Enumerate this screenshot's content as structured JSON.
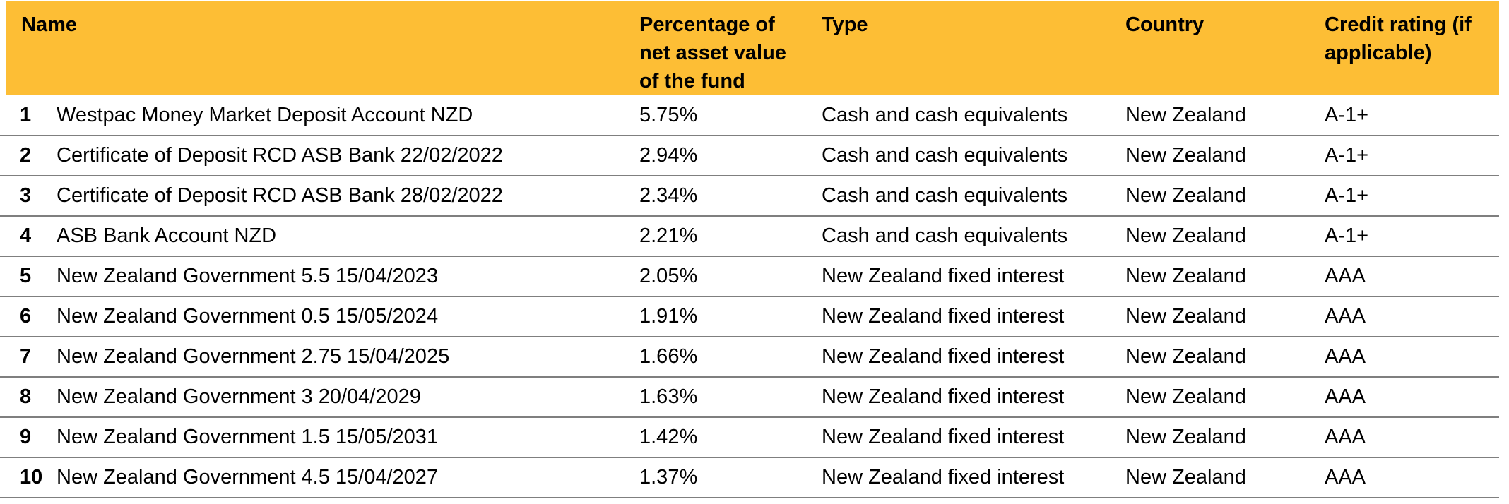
{
  "table": {
    "columns": [
      "Name",
      "Percentage of net asset value of the fund",
      "Type",
      "Country",
      "Credit rating (if applicable)"
    ],
    "rows": [
      {
        "number": "1",
        "name": "Westpac Money Market Deposit Account NZD",
        "percentage": "5.75%",
        "type": "Cash and cash equivalents",
        "country": "New Zealand",
        "credit_rating": "A-1+"
      },
      {
        "number": "2",
        "name": "Certificate of Deposit RCD ASB Bank 22/02/2022",
        "percentage": "2.94%",
        "type": "Cash and cash equivalents",
        "country": "New Zealand",
        "credit_rating": "A-1+"
      },
      {
        "number": "3",
        "name": "Certificate of Deposit RCD ASB Bank 28/02/2022",
        "percentage": "2.34%",
        "type": "Cash and cash equivalents",
        "country": "New Zealand",
        "credit_rating": "A-1+"
      },
      {
        "number": "4",
        "name": "ASB Bank Account NZD",
        "percentage": "2.21%",
        "type": "Cash and cash equivalents",
        "country": "New Zealand",
        "credit_rating": "A-1+"
      },
      {
        "number": "5",
        "name": "New Zealand Government 5.5 15/04/2023",
        "percentage": "2.05%",
        "type": "New Zealand fixed interest",
        "country": "New Zealand",
        "credit_rating": "AAA"
      },
      {
        "number": "6",
        "name": "New Zealand Government 0.5 15/05/2024",
        "percentage": "1.91%",
        "type": "New Zealand fixed interest",
        "country": "New Zealand",
        "credit_rating": "AAA"
      },
      {
        "number": "7",
        "name": "New Zealand Government 2.75 15/04/2025",
        "percentage": "1.66%",
        "type": "New Zealand fixed interest",
        "country": "New Zealand",
        "credit_rating": "AAA"
      },
      {
        "number": "8",
        "name": "New Zealand Government 3 20/04/2029",
        "percentage": "1.63%",
        "type": "New Zealand fixed interest",
        "country": "New Zealand",
        "credit_rating": "AAA"
      },
      {
        "number": "9",
        "name": "New Zealand Government 1.5 15/05/2031",
        "percentage": "1.42%",
        "type": "New Zealand fixed interest",
        "country": "New Zealand",
        "credit_rating": "AAA"
      },
      {
        "number": "10",
        "name": "New Zealand Government 4.5 15/04/2027",
        "percentage": "1.37%",
        "type": "New Zealand fixed interest",
        "country": "New Zealand",
        "credit_rating": "AAA"
      }
    ],
    "colors": {
      "header_background": "#FDBE35",
      "divider": "#7F7F7F",
      "text": "#000000"
    }
  }
}
